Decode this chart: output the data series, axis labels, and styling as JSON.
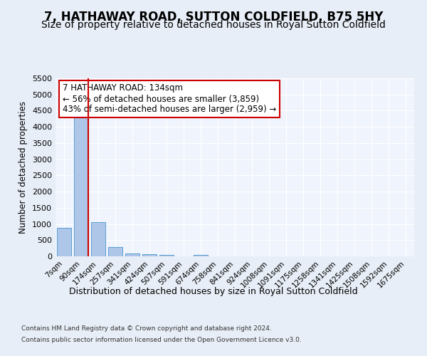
{
  "title": "7, HATHAWAY ROAD, SUTTON COLDFIELD, B75 5HY",
  "subtitle": "Size of property relative to detached houses in Royal Sutton Coldfield",
  "xlabel": "Distribution of detached houses by size in Royal Sutton Coldfield",
  "ylabel": "Number of detached properties",
  "footnote1": "Contains HM Land Registry data © Crown copyright and database right 2024.",
  "footnote2": "Contains public sector information licensed under the Open Government Licence v3.0.",
  "bar_labels": [
    "7sqm",
    "90sqm",
    "174sqm",
    "257sqm",
    "341sqm",
    "424sqm",
    "507sqm",
    "591sqm",
    "674sqm",
    "758sqm",
    "841sqm",
    "924sqm",
    "1008sqm",
    "1091sqm",
    "1175sqm",
    "1258sqm",
    "1341sqm",
    "1425sqm",
    "1508sqm",
    "1592sqm",
    "1675sqm"
  ],
  "bar_values": [
    870,
    4560,
    1060,
    280,
    95,
    75,
    50,
    0,
    50,
    0,
    0,
    0,
    0,
    0,
    0,
    0,
    0,
    0,
    0,
    0,
    0
  ],
  "bar_color": "#aec6e8",
  "bar_edge_color": "#5a9fd4",
  "vline_color": "#cc0000",
  "annotation_text": "7 HATHAWAY ROAD: 134sqm\n← 56% of detached houses are smaller (3,859)\n43% of semi-detached houses are larger (2,959) →",
  "annotation_box_color": "#cc0000",
  "annotation_bg": "white",
  "ylim": [
    0,
    5500
  ],
  "yticks": [
    0,
    500,
    1000,
    1500,
    2000,
    2500,
    3000,
    3500,
    4000,
    4500,
    5000,
    5500
  ],
  "bg_color": "#e8eef7",
  "plot_bg_color": "#f0f4fc",
  "title_fontsize": 12,
  "subtitle_fontsize": 10
}
